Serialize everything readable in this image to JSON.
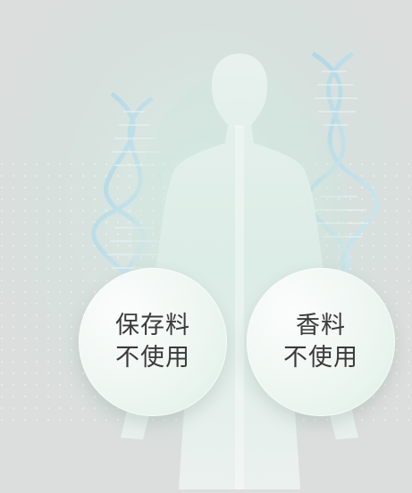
{
  "badges": [
    {
      "line1": "保存料",
      "line2": "不使用"
    },
    {
      "line1": "香料",
      "line2": "不使用"
    }
  ],
  "colors": {
    "background": "#dcdedd",
    "silhouette": "#eef3f1",
    "glow": "#bfe0d6",
    "dna": "#9fd2e3",
    "text": "#3a3a3a"
  }
}
